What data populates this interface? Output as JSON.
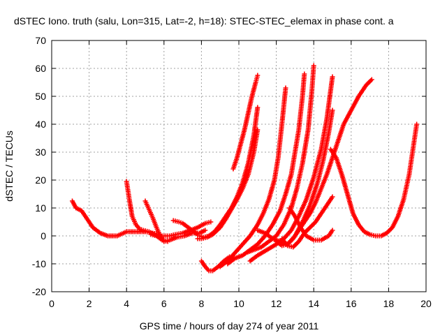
{
  "chart_data": {
    "type": "scatter",
    "title": "dSTEC Iono. truth (salu, Lon=315, Lat=-2, h=18): STEC-STEC_elemax in phase cont. a",
    "xlabel": "GPS time / hours of day 274 of year 2011",
    "ylabel": "dSTEC  / TECUs",
    "xlim": [
      0,
      20
    ],
    "ylim": [
      -20,
      70
    ],
    "x_ticks": [
      "0",
      "2",
      "4",
      "6",
      "8",
      "10",
      "12",
      "14",
      "16",
      "18",
      "20"
    ],
    "y_ticks": [
      "-20",
      "-10",
      "0",
      "10",
      "20",
      "30",
      "40",
      "50",
      "60",
      "70"
    ],
    "grid": true,
    "marker": "+",
    "color": "#ff0000",
    "series": [
      {
        "x": [
          1.1,
          1.3,
          1.6,
          1.9,
          2.2,
          2.6,
          3.0,
          3.5,
          4.0,
          4.5,
          5.0,
          5.4,
          5.8
        ],
        "y": [
          12.5,
          10,
          9,
          6,
          3,
          1,
          0,
          0,
          1.5,
          1.5,
          1.5,
          1,
          0.5
        ]
      },
      {
        "x": [
          4.0,
          4.15,
          4.3,
          4.5,
          4.7,
          4.9,
          5.2,
          5.6,
          5.9,
          6.2
        ],
        "y": [
          19.5,
          13,
          7,
          4,
          2.5,
          2,
          1.5,
          0,
          -1.5,
          -2
        ]
      },
      {
        "x": [
          5.0,
          5.2,
          5.4,
          5.6,
          5.8,
          6.0,
          6.3,
          6.7,
          7.1,
          7.5,
          7.9,
          8.2
        ],
        "y": [
          12.5,
          9.5,
          6.5,
          3,
          0,
          -2,
          -1.5,
          -0.5,
          0,
          1,
          1,
          2
        ]
      },
      {
        "x": [
          6.5,
          6.8,
          7.0,
          7.2,
          7.4,
          7.6,
          7.8
        ],
        "y": [
          5.5,
          5,
          4.5,
          3.5,
          2.5,
          1.5,
          0.5
        ]
      },
      {
        "x": [
          5.3,
          5.6,
          6.0,
          6.3,
          6.6,
          7.0,
          7.4,
          7.8,
          8.2,
          8.5
        ],
        "y": [
          0.5,
          0,
          0,
          0,
          0.5,
          1,
          2,
          3,
          4.5,
          5
        ]
      },
      {
        "x": [
          7.9,
          8.1,
          8.4,
          8.7,
          9.0,
          9.3,
          9.6,
          9.9,
          10.2,
          10.5,
          10.8,
          11.0
        ],
        "y": [
          0,
          -0.5,
          0,
          1.5,
          4,
          7,
          10,
          14,
          19,
          26,
          36,
          46
        ]
      },
      {
        "x": [
          7.8,
          8.0,
          8.3,
          8.6,
          9.0,
          9.3,
          9.6,
          9.9,
          10.2,
          10.5,
          10.8,
          11.0
        ],
        "y": [
          -1,
          -1,
          -0.5,
          0.5,
          3,
          6,
          9.5,
          13,
          17,
          22,
          30,
          38
        ]
      },
      {
        "x": [
          8.0,
          8.2,
          8.4,
          8.6,
          8.9,
          9.2,
          9.5
        ],
        "y": [
          -9,
          -11,
          -12.5,
          -12.5,
          -11,
          -9,
          -7.5
        ]
      },
      {
        "x": [
          9.7,
          9.9,
          10.1,
          10.3,
          10.5,
          10.7,
          10.9,
          11.0
        ],
        "y": [
          24,
          28,
          33,
          38,
          44,
          50,
          55,
          57.5
        ]
      },
      {
        "x": [
          9.0,
          9.4,
          9.8,
          10.2,
          10.6,
          11.0,
          11.3,
          11.6,
          11.9,
          12.1,
          12.3,
          12.5
        ],
        "y": [
          -11,
          -9,
          -6,
          -3,
          0,
          4,
          8,
          13,
          20,
          28,
          40,
          53
        ]
      },
      {
        "x": [
          9.4,
          9.8,
          10.2,
          10.6,
          11.0,
          11.4,
          11.8,
          12.2,
          12.5,
          12.8,
          13.0,
          13.2,
          13.4,
          13.5
        ],
        "y": [
          -10,
          -8,
          -7,
          -5,
          -3,
          0,
          4,
          9,
          15,
          22,
          30,
          38,
          50,
          58
        ]
      },
      {
        "x": [
          10.4,
          10.8,
          11.2,
          11.6,
          12.0,
          12.4,
          12.8,
          13.1,
          13.4,
          13.7,
          13.9,
          14.0
        ],
        "y": [
          -6,
          -5,
          -4,
          -2,
          0,
          4,
          10,
          17,
          26,
          38,
          52,
          61
        ]
      },
      {
        "x": [
          10.6,
          11.0,
          11.5,
          12.0,
          12.4,
          12.8,
          13.2,
          13.6,
          14.0,
          14.4,
          14.7,
          15.0
        ],
        "y": [
          -9,
          -7,
          -5,
          -3,
          -1,
          2,
          7,
          13,
          21,
          31,
          42,
          57
        ]
      },
      {
        "x": [
          11.0,
          11.4,
          11.8,
          12.2,
          12.6,
          13.0,
          13.4,
          13.8,
          14.2,
          14.5,
          14.8,
          15.0
        ],
        "y": [
          2,
          1,
          -1,
          -2,
          -3,
          0,
          5,
          11,
          19,
          27,
          37,
          45
        ]
      },
      {
        "x": [
          12.0,
          12.3,
          12.6,
          12.9,
          13.2,
          13.5,
          13.8,
          14.1,
          14.4,
          14.7,
          15.0,
          15.3,
          15.6,
          16.0,
          16.4,
          16.8,
          17.1
        ],
        "y": [
          -2,
          -3.5,
          -3,
          -1,
          2,
          5,
          8,
          12,
          17,
          22,
          28,
          34,
          40,
          45,
          50,
          54,
          56
        ]
      },
      {
        "x": [
          12.3,
          12.6,
          12.9,
          13.2,
          13.5,
          13.8,
          14.1,
          14.4,
          14.7,
          15.0
        ],
        "y": [
          -1,
          -3.5,
          -4,
          -2,
          1,
          3,
          5,
          8,
          11,
          14
        ]
      },
      {
        "x": [
          12.7,
          13.0,
          13.3,
          13.6,
          14.0,
          14.4,
          14.8,
          15.0
        ],
        "y": [
          10,
          7,
          3,
          0,
          -1.5,
          -1.5,
          0,
          2
        ]
      },
      {
        "x": [
          14.9,
          15.2,
          15.5,
          15.8,
          16.1,
          16.4,
          16.7,
          17.0,
          17.3,
          17.6,
          17.9,
          18.2,
          18.5,
          18.8,
          19.1,
          19.3,
          19.5
        ],
        "y": [
          31,
          28,
          22,
          15,
          8,
          4,
          1.5,
          0.5,
          0,
          0,
          1,
          3,
          7,
          13,
          22,
          31,
          40
        ]
      }
    ]
  }
}
